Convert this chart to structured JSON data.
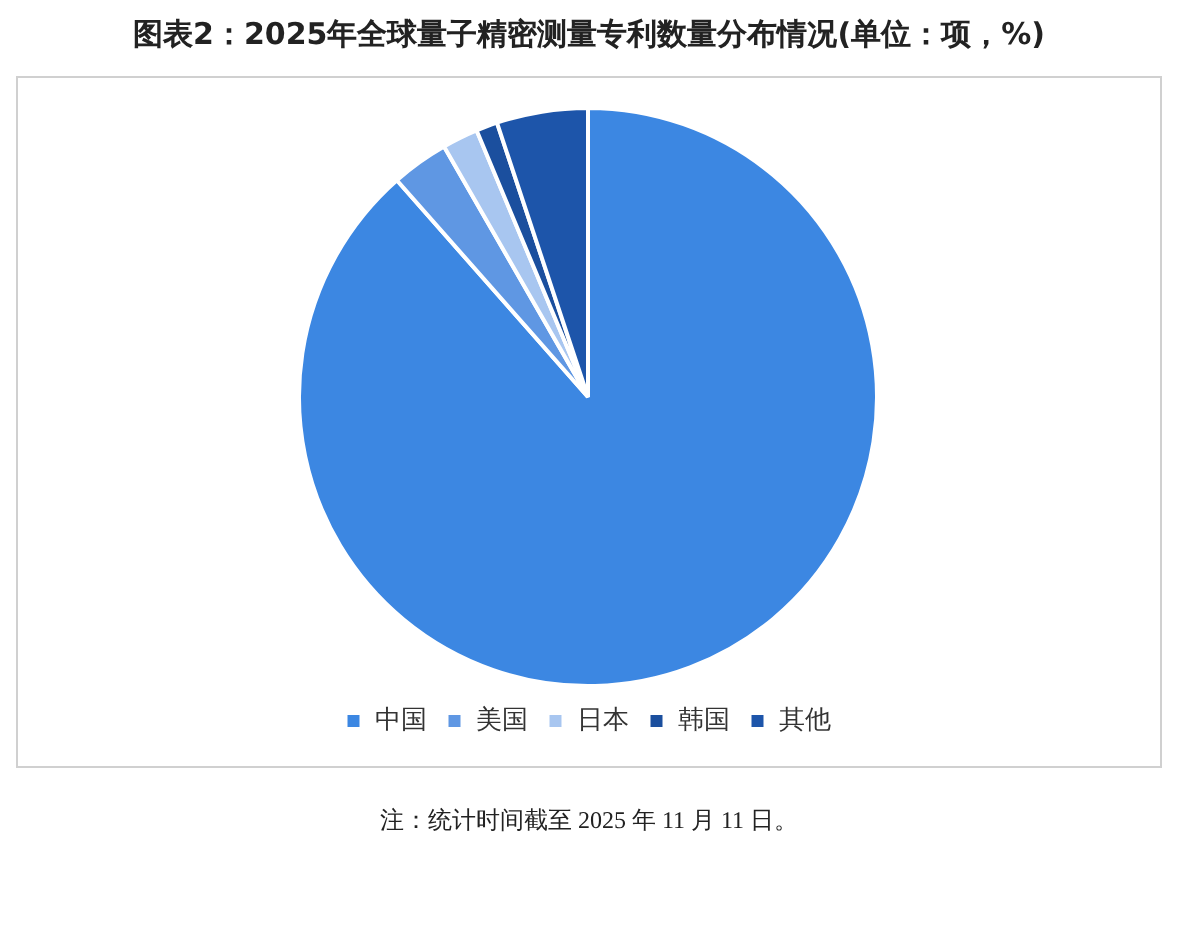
{
  "chart_data": {
    "type": "pie",
    "title": "图表2：2025年全球量子精密测量专利数量分布情况(单位：项，%)",
    "categories": [
      "中国",
      "美国",
      "日本",
      "韩国",
      "其他"
    ],
    "values": [
      88.5,
      3.2,
      2.0,
      1.2,
      5.1
    ],
    "colors": [
      "#3c87e2",
      "#5f97e3",
      "#a8c6f0",
      "#1b4f9e",
      "#1d55aa"
    ],
    "legend": "bottom",
    "annotations": [
      "注：统计时间截至 2025 年 11 月 11 日。"
    ]
  }
}
